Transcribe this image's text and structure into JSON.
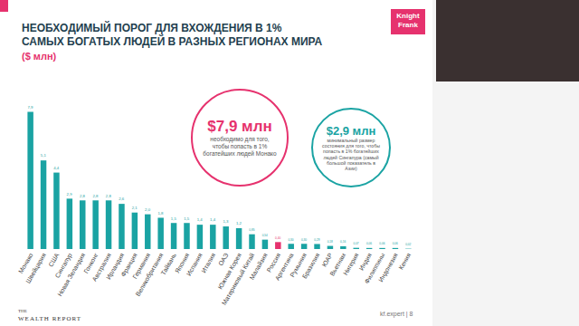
{
  "chart_data": {
    "type": "bar",
    "title": "НЕОБХОДИМЫЙ ПОРОГ ДЛЯ ВХОЖДЕНИЯ  В 1%\nСАМЫХ БОГАТЫХ ЛЮДЕЙ В РАЗНЫХ РЕГИОНАХ МИРА",
    "subtitle": "($ млн)",
    "categories": [
      "Монако",
      "Швейцария",
      "США",
      "Сингапур",
      "Новая Зеландия",
      "Гонконг",
      "Австралия",
      "Ирландия",
      "Франция",
      "Германия",
      "Великобритания",
      "Тайвань",
      "Япония",
      "Испания",
      "Италия",
      "ОАЭ",
      "Южная Корея",
      "Материковый Китай",
      "Малайзия",
      "Россия",
      "Аргентина",
      "Румыния",
      "Бразилия",
      "ЮАР",
      "Вьетнам",
      "Нигерия",
      "Индия",
      "Филиппины",
      "Индонезия",
      "Кения"
    ],
    "values": [
      7.9,
      5.1,
      4.4,
      2.9,
      2.8,
      2.8,
      2.8,
      2.6,
      2.1,
      2.0,
      1.8,
      1.5,
      1.5,
      1.4,
      1.4,
      1.3,
      1.2,
      0.85,
      0.54,
      0.4,
      0.3,
      0.3,
      0.29,
      0.18,
      0.16,
      0.07,
      0.06,
      0.06,
      0.06,
      0.02
    ],
    "value_labels": [
      "7,9",
      "5,1",
      "4,4",
      "2,9",
      "2,8",
      "2,8",
      "2,8",
      "2,6",
      "2,1",
      "2,0",
      "1,8",
      "1,5",
      "1,5",
      "1,4",
      "1,4",
      "1,3",
      "1,2",
      "0,85",
      "0,54",
      "0,40",
      "0,30",
      "0,30",
      "0,29",
      "0,18",
      "0,16",
      "0,07",
      "0,06",
      "0,06",
      "0,06",
      "0,02"
    ],
    "colors": [
      "#1aa3a3",
      "#1aa3a3",
      "#1aa3a3",
      "#1aa3a3",
      "#1aa3a3",
      "#1aa3a3",
      "#1aa3a3",
      "#1aa3a3",
      "#1aa3a3",
      "#1aa3a3",
      "#1aa3a3",
      "#1aa3a3",
      "#1aa3a3",
      "#1aa3a3",
      "#1aa3a3",
      "#1aa3a3",
      "#1aa3a3",
      "#1aa3a3",
      "#1aa3a3",
      "#e6326e",
      "#1aa3a3",
      "#1aa3a3",
      "#1aa3a3",
      "#1aa3a3",
      "#1aa3a3",
      "#1aa3a3",
      "#1aa3a3",
      "#1aa3a3",
      "#1aa3a3",
      "#1aa3a3"
    ],
    "ylim": [
      0,
      8.6
    ],
    "data_labels": true,
    "tick_labels": "x",
    "grid": false,
    "annotations": [
      {
        "title": "$7,9 млн",
        "text": "необходимо для того, чтобы попасть в 1% богатейших людей Монако",
        "color": "#e6326e"
      },
      {
        "title": "$2,9 млн",
        "text": "минимальный размер состояния для того, чтобы попасть в 1% богатейших людей Сингапура (самый большой показатель в Азии)",
        "color": "#1aa3a3"
      }
    ]
  },
  "logo": "Knight\nFrank",
  "footer": {
    "source": [
      "THE",
      "WEALTH REPORT"
    ],
    "page": "kf.expert | 8"
  }
}
